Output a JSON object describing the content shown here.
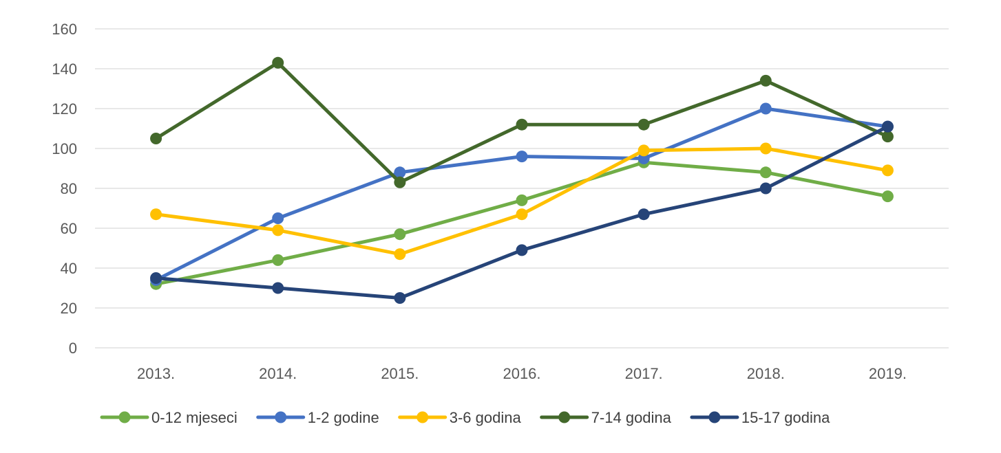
{
  "chart_data": {
    "type": "line",
    "title": "",
    "xlabel": "",
    "ylabel": "",
    "categories": [
      "2013.",
      "2014.",
      "2015.",
      "2016.",
      "2017.",
      "2018.",
      "2019."
    ],
    "ylim": [
      0,
      160
    ],
    "yticks": [
      "0",
      "20",
      "40",
      "60",
      "80",
      "100",
      "120",
      "140",
      "160"
    ],
    "grid": true,
    "legend_position": "bottom",
    "series": [
      {
        "name": "0-12 mjeseci",
        "color": "#70AD47",
        "values": [
          32,
          44,
          57,
          74,
          93,
          88,
          76
        ]
      },
      {
        "name": "1-2 godine",
        "color": "#4472C4",
        "values": [
          34,
          65,
          88,
          96,
          95,
          120,
          111
        ]
      },
      {
        "name": "3-6 godina",
        "color": "#FFC000",
        "values": [
          67,
          59,
          47,
          67,
          99,
          100,
          89
        ]
      },
      {
        "name": "7-14 godina",
        "color": "#43682B",
        "values": [
          105,
          143,
          83,
          112,
          112,
          134,
          106
        ]
      },
      {
        "name": "15-17 godina",
        "color": "#264478",
        "values": [
          35,
          30,
          25,
          49,
          67,
          80,
          111
        ]
      }
    ]
  }
}
